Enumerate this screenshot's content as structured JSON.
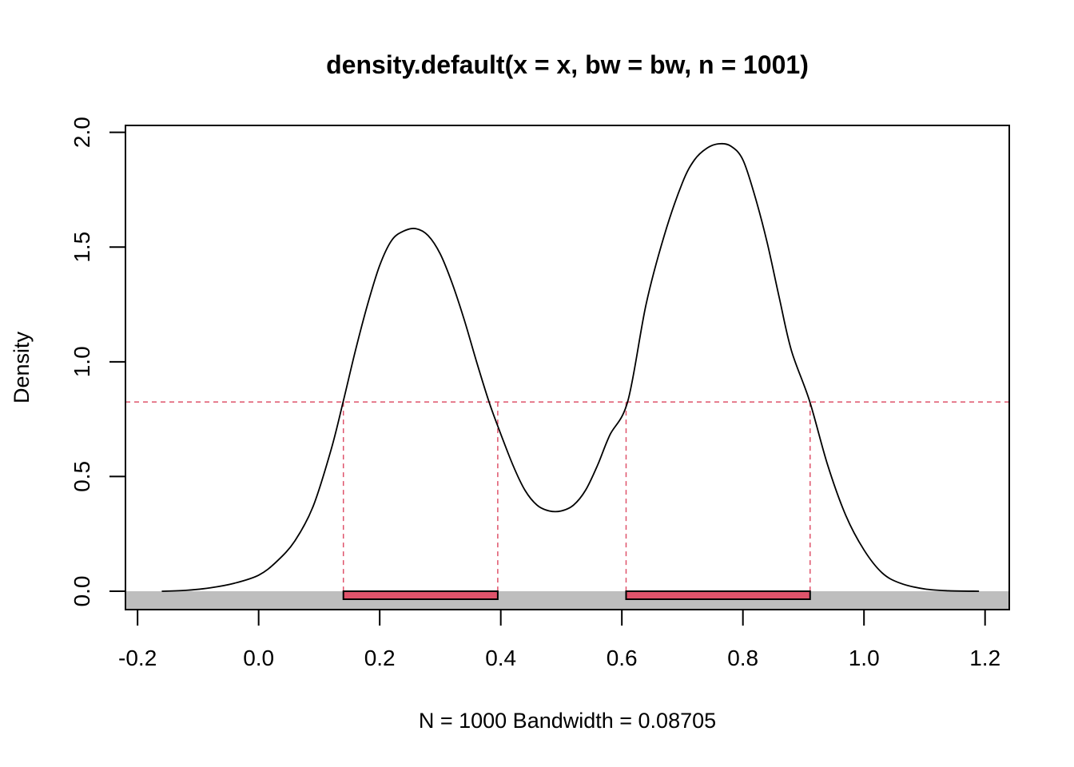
{
  "chart_data": {
    "type": "line",
    "title": "density.default(x = x, bw = bw, n = 1001)",
    "xlabel": "N = 1000   Bandwidth = 0.08705",
    "ylabel": "Density",
    "xlim": [
      -0.22,
      1.24
    ],
    "ylim": [
      -0.08,
      2.03
    ],
    "x_ticks": [
      -0.2,
      0.0,
      0.2,
      0.4,
      0.6,
      0.8,
      1.0,
      1.2
    ],
    "x_tick_labels": [
      "-0.2",
      "0.0",
      "0.2",
      "0.4",
      "0.6",
      "0.8",
      "1.0",
      "1.2"
    ],
    "y_ticks": [
      0.0,
      0.5,
      1.0,
      1.5,
      2.0
    ],
    "y_tick_labels": [
      "0.0",
      "0.5",
      "1.0",
      "1.5",
      "2.0"
    ],
    "grid": false,
    "series": [
      {
        "x": [
          -0.16,
          -0.12,
          -0.08,
          -0.04,
          0.0,
          0.03,
          0.06,
          0.09,
          0.12,
          0.14,
          0.16,
          0.18,
          0.2,
          0.22,
          0.24,
          0.26,
          0.28,
          0.3,
          0.32,
          0.34,
          0.36,
          0.38,
          0.395,
          0.42,
          0.44,
          0.46,
          0.48,
          0.5,
          0.52,
          0.54,
          0.56,
          0.58,
          0.61,
          0.64,
          0.67,
          0.7,
          0.72,
          0.74,
          0.76,
          0.78,
          0.8,
          0.82,
          0.84,
          0.86,
          0.88,
          0.91,
          0.94,
          0.97,
          1.0,
          1.03,
          1.06,
          1.1,
          1.14,
          1.19
        ],
        "y": [
          0.0,
          0.004,
          0.015,
          0.035,
          0.07,
          0.13,
          0.22,
          0.37,
          0.62,
          0.83,
          1.05,
          1.25,
          1.42,
          1.53,
          1.57,
          1.58,
          1.55,
          1.47,
          1.34,
          1.18,
          1.0,
          0.83,
          0.72,
          0.55,
          0.44,
          0.375,
          0.35,
          0.35,
          0.375,
          0.44,
          0.55,
          0.68,
          0.83,
          1.25,
          1.55,
          1.78,
          1.88,
          1.93,
          1.95,
          1.94,
          1.88,
          1.72,
          1.52,
          1.28,
          1.05,
          0.83,
          0.55,
          0.33,
          0.18,
          0.08,
          0.035,
          0.01,
          0.002,
          0.0
        ],
        "color": "#000000"
      }
    ],
    "threshold": {
      "y": 0.825,
      "color": "#DF536B",
      "style": "dashed"
    },
    "intervals": [
      {
        "x0": 0.14,
        "x1": 0.395,
        "color": "#DF536B"
      },
      {
        "x0": 0.607,
        "x1": 0.911,
        "color": "#DF536B"
      }
    ],
    "baseline_band_color": "#BEBEBE",
    "line_color": "#000000"
  }
}
